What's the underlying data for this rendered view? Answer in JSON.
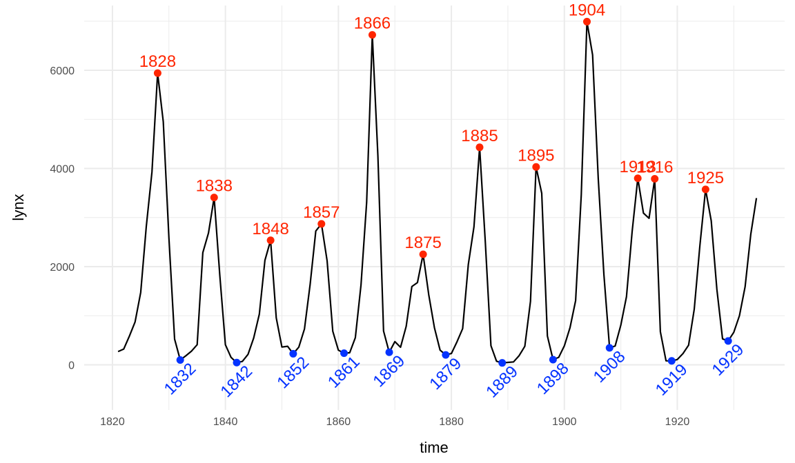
{
  "chart_data": {
    "type": "line",
    "title": "",
    "xlabel": "time",
    "ylabel": "lynx",
    "xlim": [
      1815,
      1939
    ],
    "ylim": [
      -920,
      7320
    ],
    "x_ticks": [
      1820,
      1840,
      1860,
      1880,
      1900,
      1920
    ],
    "y_ticks": [
      0,
      2000,
      4000,
      6000
    ],
    "grid": true,
    "legend": "none",
    "colors": {
      "line": "#000000",
      "peak": "#ff2500",
      "trough": "#0433ff",
      "grid": "#ebebeb"
    },
    "series": [
      {
        "x": [
          1821,
          1822,
          1823,
          1824,
          1825,
          1826,
          1827,
          1828,
          1829,
          1830,
          1831,
          1832,
          1833,
          1834,
          1835,
          1836,
          1837,
          1838,
          1839,
          1840,
          1841,
          1842,
          1843,
          1844,
          1845,
          1846,
          1847,
          1848,
          1849,
          1850,
          1851,
          1852,
          1853,
          1854,
          1855,
          1856,
          1857,
          1858,
          1859,
          1860,
          1861,
          1862,
          1863,
          1864,
          1865,
          1866,
          1867,
          1868,
          1869,
          1870,
          1871,
          1872,
          1873,
          1874,
          1875,
          1876,
          1877,
          1878,
          1879,
          1880,
          1881,
          1882,
          1883,
          1884,
          1885,
          1886,
          1887,
          1888,
          1889,
          1890,
          1891,
          1892,
          1893,
          1894,
          1895,
          1896,
          1897,
          1898,
          1899,
          1900,
          1901,
          1902,
          1903,
          1904,
          1905,
          1906,
          1907,
          1908,
          1909,
          1910,
          1911,
          1912,
          1913,
          1914,
          1915,
          1916,
          1917,
          1918,
          1919,
          1920,
          1921,
          1922,
          1923,
          1924,
          1925,
          1926,
          1927,
          1928,
          1929,
          1930,
          1931,
          1932,
          1933,
          1934
        ],
        "y": [
          269,
          321,
          585,
          871,
          1475,
          2821,
          3928,
          5943,
          4950,
          2577,
          523,
          98,
          184,
          279,
          409,
          2285,
          2685,
          3409,
          1824,
          409,
          151,
          45,
          68,
          213,
          546,
          1033,
          2129,
          2536,
          957,
          361,
          377,
          225,
          360,
          731,
          1638,
          2725,
          2871,
          2119,
          684,
          299,
          236,
          245,
          552,
          1623,
          3311,
          6721,
          4254,
          687,
          255,
          473,
          358,
          784,
          1594,
          1676,
          2251,
          1426,
          756,
          299,
          201,
          229,
          469,
          736,
          2042,
          2811,
          4431,
          2511,
          389,
          73,
          39,
          49,
          59,
          188,
          377,
          1292,
          4031,
          3495,
          587,
          105,
          153,
          387,
          758,
          1307,
          3465,
          6991,
          6313,
          3794,
          1836,
          345,
          382,
          808,
          1388,
          2713,
          3800,
          3091,
          2985,
          3790,
          674,
          81,
          80,
          108,
          229,
          399,
          1132,
          2432,
          3574,
          2935,
          1537,
          529,
          485,
          662,
          1000,
          1590,
          2657,
          3396
        ]
      }
    ],
    "peaks": [
      {
        "year": 1828,
        "value": 5943
      },
      {
        "year": 1838,
        "value": 3409
      },
      {
        "year": 1848,
        "value": 2536
      },
      {
        "year": 1857,
        "value": 2871
      },
      {
        "year": 1866,
        "value": 6721
      },
      {
        "year": 1875,
        "value": 2251
      },
      {
        "year": 1885,
        "value": 4431
      },
      {
        "year": 1895,
        "value": 4031
      },
      {
        "year": 1904,
        "value": 6991
      },
      {
        "year": 1913,
        "value": 3800
      },
      {
        "year": 1916,
        "value": 3790
      },
      {
        "year": 1925,
        "value": 3574
      }
    ],
    "troughs": [
      {
        "year": 1832,
        "value": 98
      },
      {
        "year": 1842,
        "value": 45
      },
      {
        "year": 1852,
        "value": 225
      },
      {
        "year": 1861,
        "value": 236
      },
      {
        "year": 1869,
        "value": 255
      },
      {
        "year": 1879,
        "value": 201
      },
      {
        "year": 1889,
        "value": 39
      },
      {
        "year": 1898,
        "value": 105
      },
      {
        "year": 1908,
        "value": 345
      },
      {
        "year": 1919,
        "value": 80
      },
      {
        "year": 1929,
        "value": 485
      }
    ]
  }
}
